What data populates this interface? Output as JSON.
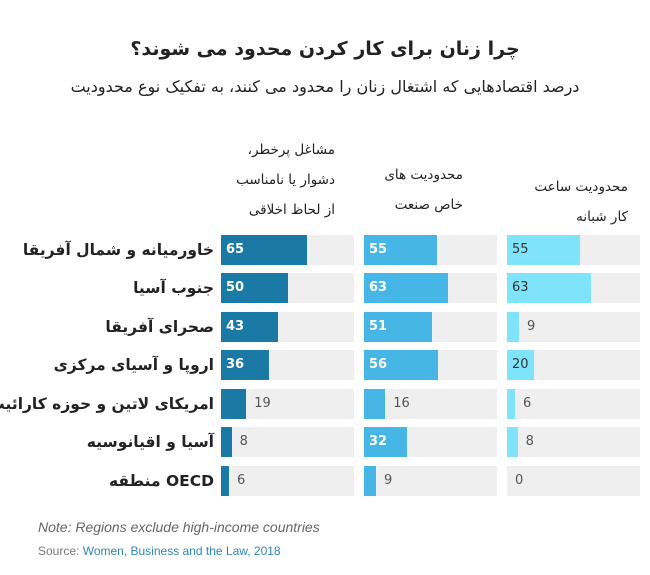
{
  "title": "چرا زنان برای کار کردن محدود می شوند؟",
  "subtitle": "درصد اقتصادهایی که اشتغال زنان را محدود می کنند، به تفکیک نوع محدودیت",
  "chart_data": {
    "type": "table",
    "columns": [
      {
        "name": "مشاغل پرخطر، دشوار یا نامناسب از لحاظ اخلاقی",
        "lines": [
          "مشاغل پرخطر،",
          "دشوار یا نامناسب",
          "از لحاظ اخلاقی"
        ],
        "color": "#1b7aa5"
      },
      {
        "name": "محدودیت های خاص صنعت",
        "lines": [
          "محدودیت های",
          "خاص صنعت"
        ],
        "color": "#46b6e6"
      },
      {
        "name": "محدودیت ساعت کار شبانه",
        "lines": [
          "محدودیت ساعت",
          "کار شبانه"
        ],
        "color": "#7fe3fb"
      }
    ],
    "xlim": [
      0,
      100
    ],
    "categories": [
      "خاورمیانه و شمال آفریقا",
      "جنوب آسیا",
      "صحرای آفریقا",
      "اروپا و آسیای مرکزی",
      "امریکای لاتین و حوزه کارائیب",
      "آسیا و اقیانوسیه",
      "OECD منطقه"
    ],
    "series": [
      {
        "name": "مشاغل پرخطر، دشوار یا نامناسب از لحاظ اخلاقی",
        "values": [
          65,
          50,
          43,
          36,
          19,
          8,
          6
        ]
      },
      {
        "name": "محدودیت های خاص صنعت",
        "values": [
          55,
          63,
          51,
          56,
          16,
          32,
          9
        ]
      },
      {
        "name": "محدودیت ساعت کار شبانه",
        "values": [
          55,
          63,
          9,
          20,
          6,
          8,
          0
        ]
      }
    ]
  },
  "note": "Note: Regions exclude high-income countries",
  "source_prefix": "Source:",
  "source_link": "Women, Business and the Law, 2018"
}
